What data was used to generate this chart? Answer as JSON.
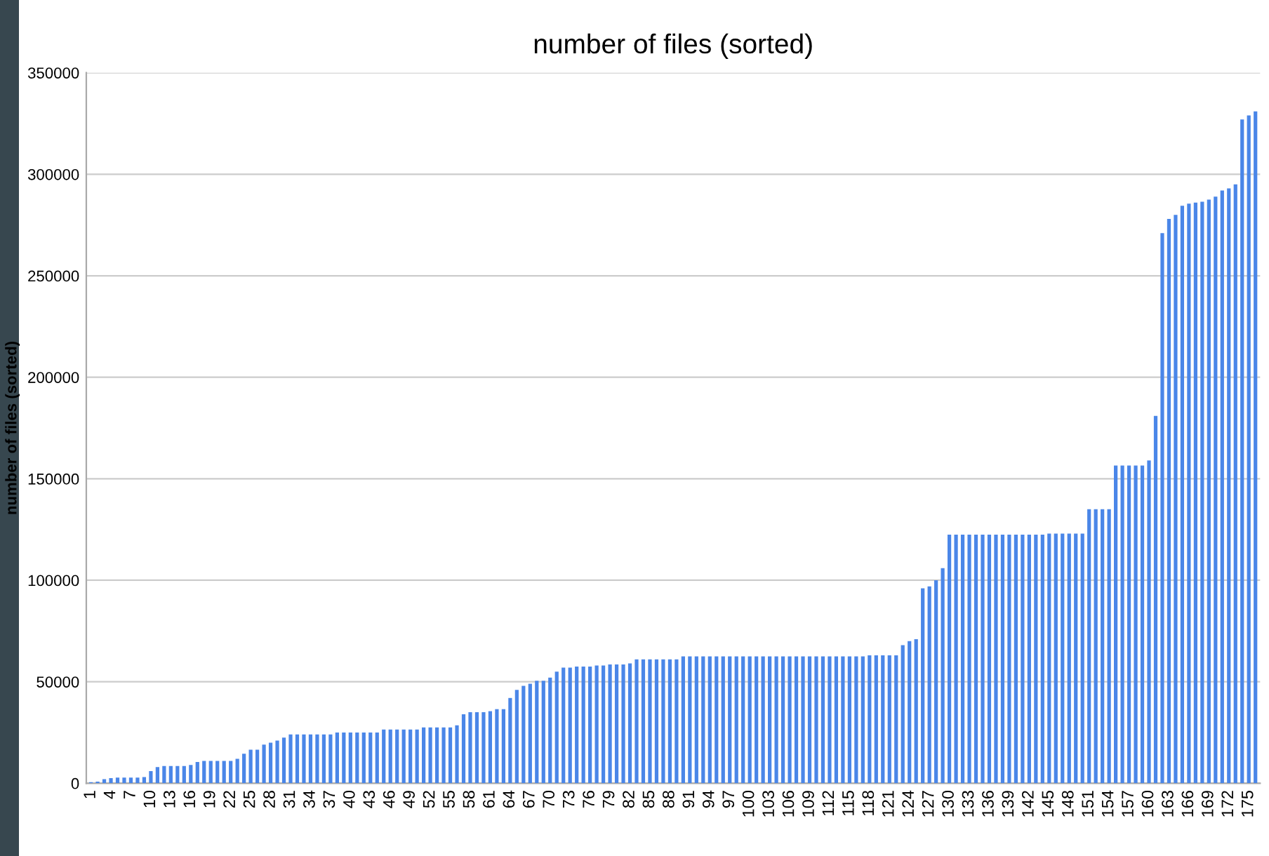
{
  "chart_data": {
    "type": "bar",
    "title": "number of files (sorted)",
    "ylabel": "number of files (sorted)",
    "categories": [
      "1",
      null,
      null,
      "4",
      null,
      null,
      "7",
      null,
      null,
      "10",
      null,
      null,
      "13",
      null,
      null,
      "16",
      null,
      null,
      "19",
      null,
      null,
      "22",
      null,
      null,
      "25",
      null,
      null,
      "28",
      null,
      null,
      "31",
      null,
      null,
      "34",
      null,
      null,
      "37",
      null,
      null,
      "40",
      null,
      null,
      "43",
      null,
      null,
      "46",
      null,
      null,
      "49",
      null,
      null,
      "52",
      null,
      null,
      "55",
      null,
      null,
      "58",
      null,
      null,
      "61",
      null,
      null,
      "64",
      null,
      null,
      "67",
      null,
      null,
      "70",
      null,
      null,
      "73",
      null,
      null,
      "76",
      null,
      null,
      "79",
      null,
      null,
      "82",
      null,
      null,
      "85",
      null,
      null,
      "88",
      null,
      null,
      "91",
      null,
      null,
      "94",
      null,
      null,
      "97",
      null,
      null,
      "100",
      null,
      null,
      "103",
      null,
      null,
      "106",
      null,
      null,
      "109",
      null,
      null,
      "112",
      null,
      null,
      "115",
      null,
      null,
      "118",
      null,
      null,
      "121",
      null,
      null,
      "124",
      null,
      null,
      "127",
      null,
      null,
      "130",
      null,
      null,
      "133",
      null,
      null,
      "136",
      null,
      null,
      "139",
      null,
      null,
      "142",
      null,
      null,
      "145",
      null,
      null,
      "148",
      null,
      null,
      "151",
      null,
      null,
      "154",
      null,
      null,
      "157",
      null,
      null,
      "160",
      null,
      null,
      "163",
      null,
      null,
      "166",
      null,
      null,
      "169",
      null,
      null,
      "172",
      null,
      null,
      "175",
      null
    ],
    "values": [
      500,
      800,
      2000,
      2500,
      2800,
      2800,
      2800,
      2800,
      3000,
      6000,
      8000,
      8500,
      8500,
      8500,
      8500,
      9000,
      10500,
      11000,
      11000,
      11000,
      11000,
      11000,
      12000,
      14500,
      16500,
      16500,
      19000,
      20000,
      21000,
      22500,
      24000,
      24000,
      24000,
      24000,
      24000,
      24000,
      24000,
      25000,
      25000,
      25000,
      25000,
      25000,
      25000,
      25000,
      26500,
      26500,
      26500,
      26500,
      26500,
      26500,
      27500,
      27500,
      27500,
      27500,
      27500,
      28500,
      34000,
      35000,
      35000,
      35000,
      35500,
      36500,
      36500,
      42000,
      46000,
      48000,
      49000,
      50500,
      50500,
      52000,
      55000,
      57000,
      57000,
      57500,
      57500,
      57500,
      58000,
      58000,
      58500,
      58500,
      58500,
      59000,
      61000,
      61000,
      61000,
      61000,
      61000,
      61000,
      61000,
      62500,
      62500,
      62500,
      62500,
      62500,
      62500,
      62500,
      62500,
      62500,
      62500,
      62500,
      62500,
      62500,
      62500,
      62500,
      62500,
      62500,
      62500,
      62500,
      62500,
      62500,
      62500,
      62500,
      62500,
      62500,
      62500,
      62500,
      62500,
      63000,
      63000,
      63000,
      63000,
      63000,
      68000,
      70000,
      71000,
      96000,
      97000,
      100000,
      106000,
      122500,
      122500,
      122500,
      122500,
      122500,
      122500,
      122500,
      122500,
      122500,
      122500,
      122500,
      122500,
      122500,
      122500,
      122500,
      123000,
      123000,
      123000,
      123000,
      123000,
      123000,
      135000,
      135000,
      135000,
      135000,
      156500,
      156500,
      156500,
      156500,
      156500,
      159000,
      181000,
      271000,
      278000,
      280000,
      284500,
      285500,
      286000,
      286500,
      287500,
      289000,
      292000,
      293000,
      295000,
      327000,
      329000,
      331000
    ],
    "color": "#4a86e8",
    "ylim": [
      0,
      350000
    ],
    "yticks": [
      0,
      50000,
      100000,
      150000,
      200000,
      250000,
      300000,
      350000
    ],
    "grid": "y"
  }
}
